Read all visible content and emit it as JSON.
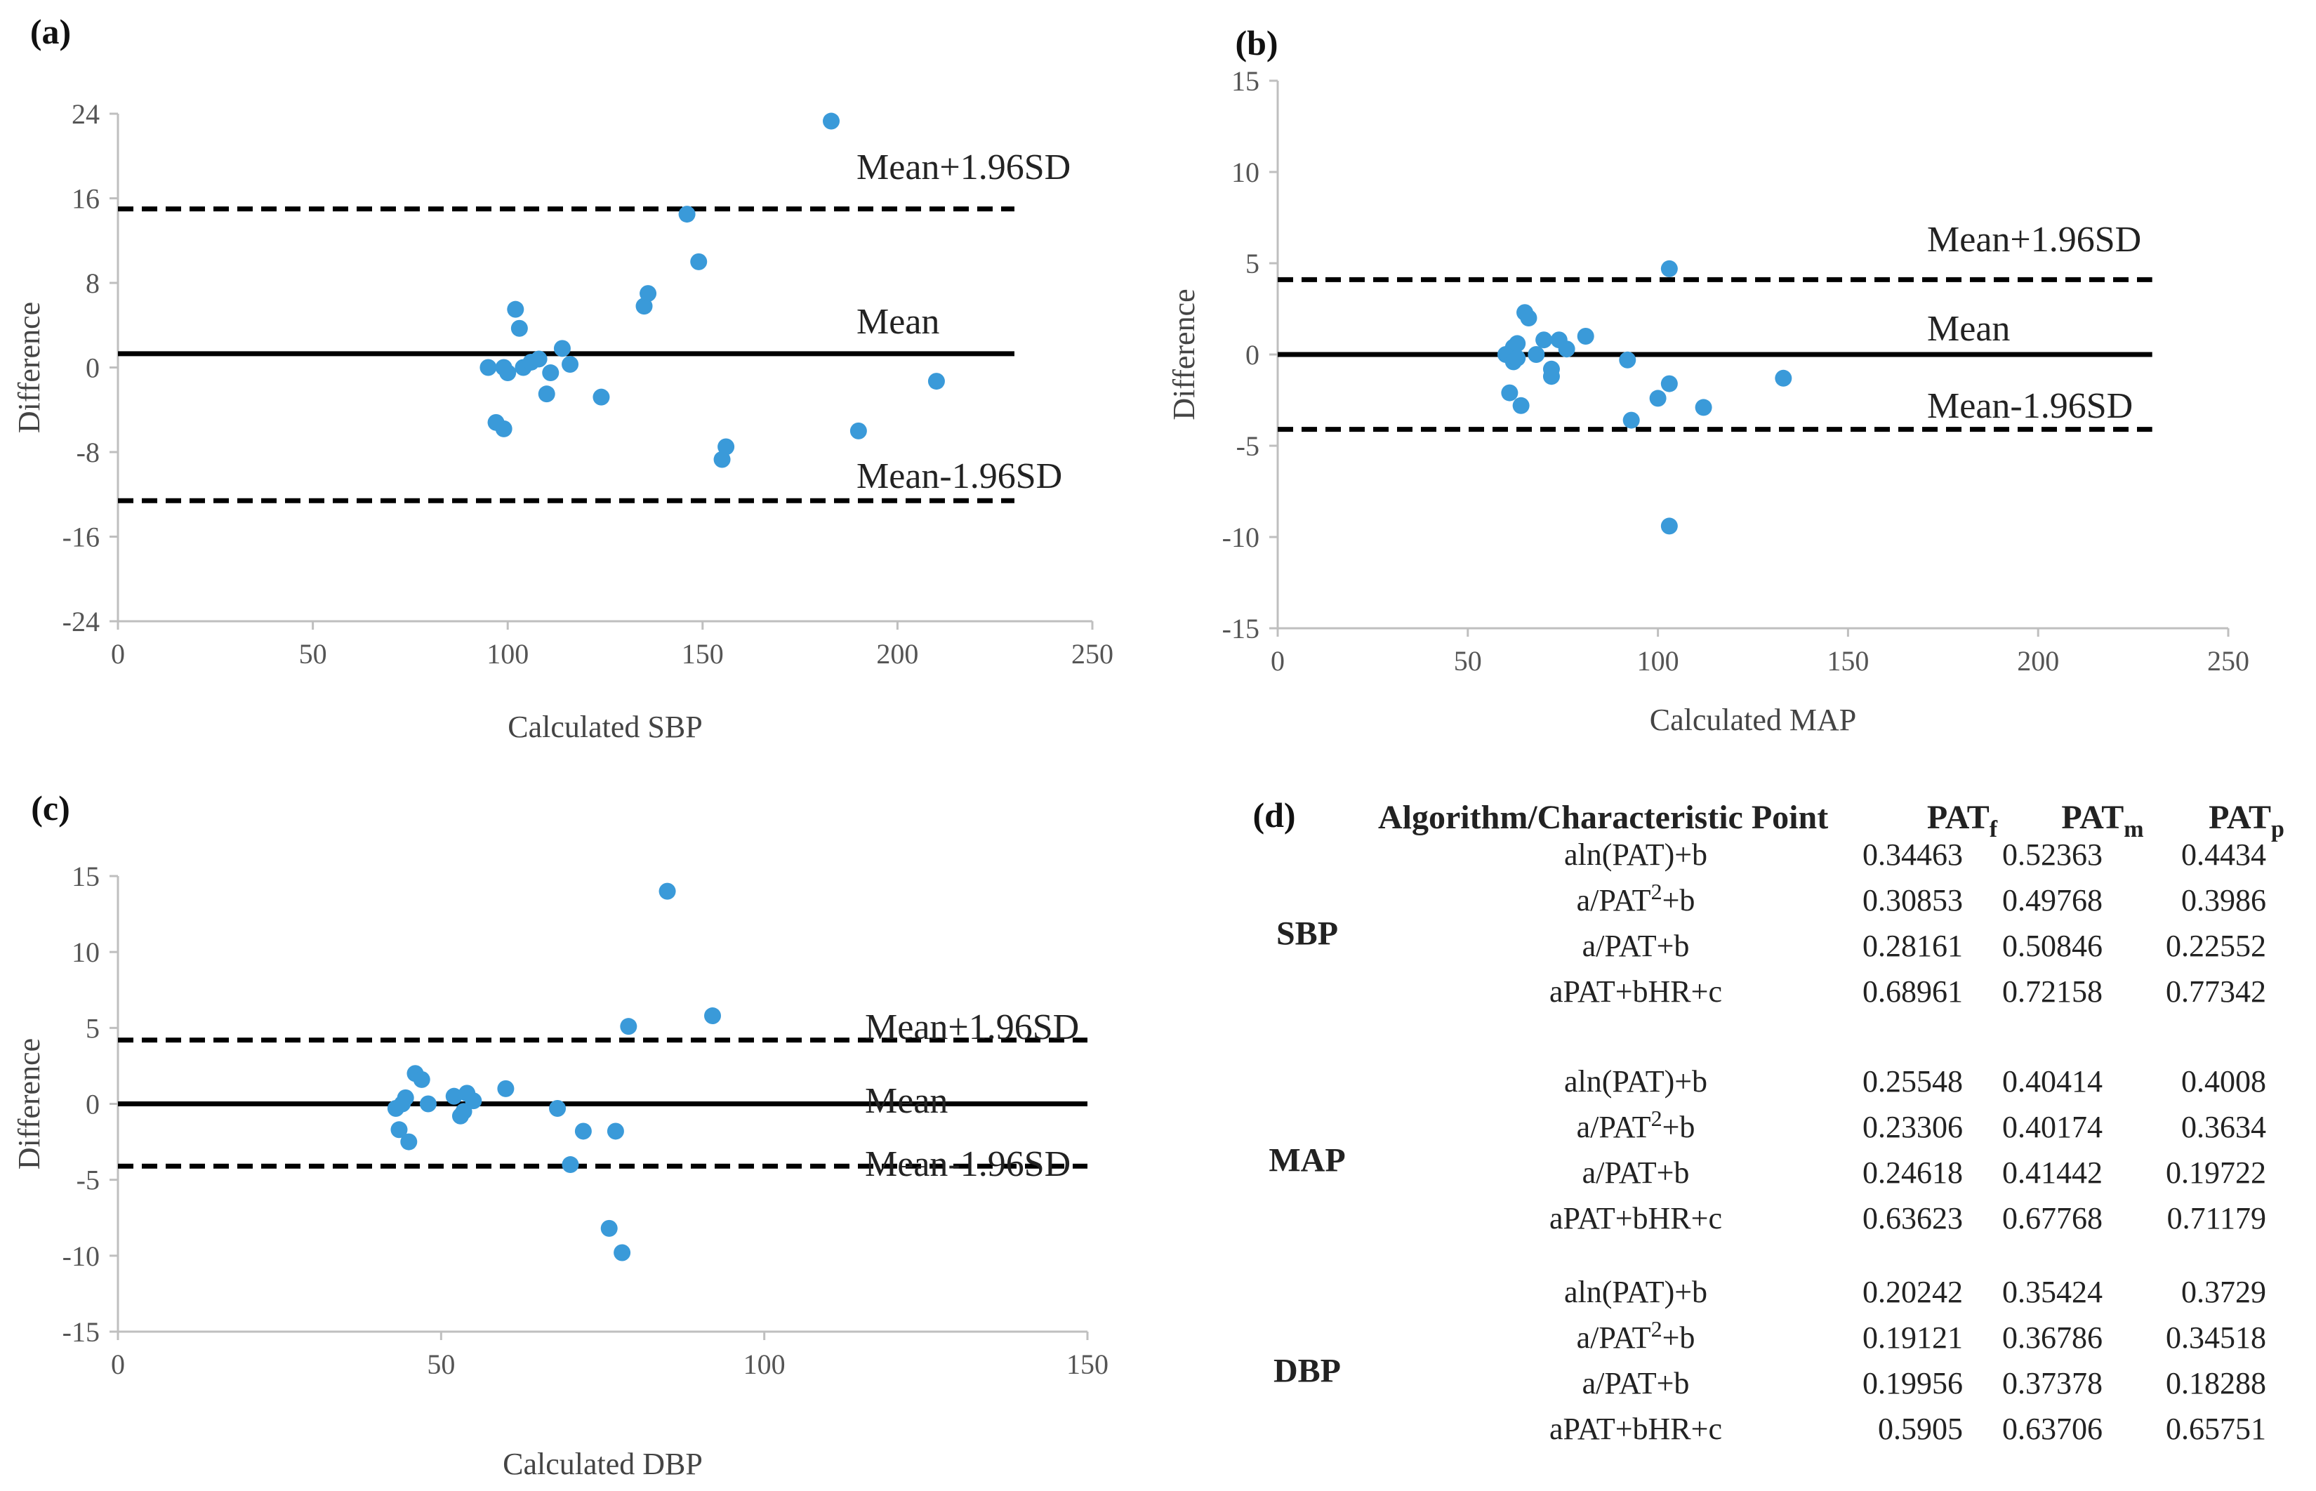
{
  "chart_data": [
    {
      "type": "scatter",
      "panel": "(a)",
      "xlabel": "Calculated SBP",
      "ylabel": "Difference",
      "xlim": [
        0,
        250
      ],
      "ylim": [
        -24,
        24
      ],
      "xticks": [
        "0",
        "50",
        "100",
        "150",
        "200",
        "250"
      ],
      "yticks": [
        "-24",
        "-16",
        "-8",
        "0",
        "8",
        "16",
        "24"
      ],
      "line_x_range": [
        0,
        230
      ],
      "reference_lines": [
        {
          "name": "upper",
          "label": "Mean+1.96SD",
          "value": 15,
          "style": "dashed"
        },
        {
          "name": "mean",
          "label": "Mean",
          "value": 1.3,
          "style": "solid"
        },
        {
          "name": "lower",
          "label": "Mean-1.96SD",
          "value": -12.6,
          "style": "dashed"
        }
      ],
      "points": [
        [
          95,
          0
        ],
        [
          99,
          0
        ],
        [
          100,
          -0.5
        ],
        [
          102,
          5.5
        ],
        [
          103,
          3.7
        ],
        [
          104,
          0
        ],
        [
          106,
          0.5
        ],
        [
          108,
          0.8
        ],
        [
          110,
          -2.5
        ],
        [
          111,
          -0.5
        ],
        [
          114,
          1.8
        ],
        [
          116,
          0.3
        ],
        [
          97,
          -5.2
        ],
        [
          99,
          -5.8
        ],
        [
          124,
          -2.8
        ],
        [
          135,
          5.8
        ],
        [
          136,
          7
        ],
        [
          146,
          14.5
        ],
        [
          149,
          10
        ],
        [
          155,
          -8.7
        ],
        [
          156,
          -7.5
        ],
        [
          183,
          23.3
        ],
        [
          190,
          -6
        ],
        [
          210,
          -1.3
        ]
      ]
    },
    {
      "type": "scatter",
      "panel": "(b)",
      "xlabel": "Calculated MAP",
      "ylabel": "Difference",
      "xlim": [
        0,
        250
      ],
      "ylim": [
        -15,
        15
      ],
      "xticks": [
        "0",
        "50",
        "100",
        "150",
        "200",
        "250"
      ],
      "yticks": [
        "-15",
        "-10",
        "-5",
        "0",
        "5",
        "10",
        "15"
      ],
      "line_x_range": [
        0,
        230
      ],
      "reference_lines": [
        {
          "name": "upper",
          "label": "Mean+1.96SD",
          "value": 4.1,
          "style": "dashed"
        },
        {
          "name": "mean",
          "label": "Mean",
          "value": 0,
          "style": "solid"
        },
        {
          "name": "lower",
          "label": "Mean-1.96SD",
          "value": -4.1,
          "style": "dashed"
        }
      ],
      "points": [
        [
          60,
          0
        ],
        [
          61,
          -2.1
        ],
        [
          62,
          0.4
        ],
        [
          62,
          -0.4
        ],
        [
          63,
          0.6
        ],
        [
          63,
          -0.2
        ],
        [
          64,
          -2.8
        ],
        [
          65,
          2.3
        ],
        [
          66,
          2
        ],
        [
          68,
          0
        ],
        [
          70,
          0.8
        ],
        [
          72,
          -0.8
        ],
        [
          72,
          -1.2
        ],
        [
          74,
          0.8
        ],
        [
          76,
          0.3
        ],
        [
          81,
          1
        ],
        [
          92,
          -0.3
        ],
        [
          93,
          -3.6
        ],
        [
          100,
          -2.4
        ],
        [
          103,
          4.7
        ],
        [
          103,
          -1.6
        ],
        [
          103,
          -9.4
        ],
        [
          112,
          -2.9
        ],
        [
          133,
          -1.3
        ]
      ]
    },
    {
      "type": "scatter",
      "panel": "(c)",
      "xlabel": "Calculated DBP",
      "ylabel": "Difference",
      "xlim": [
        0,
        150
      ],
      "ylim": [
        -15,
        15
      ],
      "xticks": [
        "0",
        "50",
        "100",
        "150"
      ],
      "yticks": [
        "-15",
        "-10",
        "-5",
        "0",
        "5",
        "10",
        "15"
      ],
      "line_x_range": [
        0,
        150
      ],
      "reference_lines": [
        {
          "name": "upper",
          "label": "Mean+1.96SD",
          "value": 4.2,
          "style": "dashed"
        },
        {
          "name": "mean",
          "label": "Mean",
          "value": 0,
          "style": "solid"
        },
        {
          "name": "lower",
          "label": "Mean-1.96SD",
          "value": -4.1,
          "style": "dashed"
        }
      ],
      "points": [
        [
          43,
          -0.3
        ],
        [
          43.5,
          -1.7
        ],
        [
          44,
          0
        ],
        [
          44.5,
          0.4
        ],
        [
          45,
          -2.5
        ],
        [
          46,
          2
        ],
        [
          47,
          1.6
        ],
        [
          48,
          0
        ],
        [
          52,
          0.5
        ],
        [
          53,
          -0.8
        ],
        [
          53.5,
          -0.5
        ],
        [
          54,
          0.7
        ],
        [
          55,
          0.2
        ],
        [
          60,
          1
        ],
        [
          68,
          -0.3
        ],
        [
          70,
          -4
        ],
        [
          72,
          -1.8
        ],
        [
          77,
          -1.8
        ],
        [
          76,
          -8.2
        ],
        [
          78,
          -9.8
        ],
        [
          79,
          5.1
        ],
        [
          85,
          14
        ],
        [
          92,
          5.8
        ]
      ]
    },
    {
      "type": "table",
      "panel": "(d)",
      "header": {
        "col0": "Algorithm/Characteristic Point",
        "cols": [
          {
            "base": "PAT",
            "sub": "f"
          },
          {
            "base": "PAT",
            "sub": "m"
          },
          {
            "base": "PAT",
            "sub": "p"
          }
        ]
      },
      "groups": [
        {
          "name": "SBP",
          "rows": [
            {
              "algo": [
                "aln(PAT)+b"
              ],
              "values": [
                "0.34463",
                "0.52363",
                "0.4434"
              ]
            },
            {
              "algo": [
                "a/PAT",
                "2",
                "+b"
              ],
              "values": [
                "0.30853",
                "0.49768",
                "0.3986"
              ]
            },
            {
              "algo": [
                "a/PAT+b"
              ],
              "values": [
                "0.28161",
                "0.50846",
                "0.22552"
              ]
            },
            {
              "algo": [
                "aPAT+bHR+c"
              ],
              "values": [
                "0.68961",
                "0.72158",
                "0.77342"
              ]
            }
          ]
        },
        {
          "name": "MAP",
          "rows": [
            {
              "algo": [
                "aln(PAT)+b"
              ],
              "values": [
                "0.25548",
                "0.40414",
                "0.4008"
              ]
            },
            {
              "algo": [
                "a/PAT",
                "2",
                "+b"
              ],
              "values": [
                "0.23306",
                "0.40174",
                "0.3634"
              ]
            },
            {
              "algo": [
                "a/PAT+b"
              ],
              "values": [
                "0.24618",
                "0.41442",
                "0.19722"
              ]
            },
            {
              "algo": [
                "aPAT+bHR+c"
              ],
              "values": [
                "0.63623",
                "0.67768",
                "0.71179"
              ]
            }
          ]
        },
        {
          "name": "DBP",
          "rows": [
            {
              "algo": [
                "aln(PAT)+b"
              ],
              "values": [
                "0.20242",
                "0.35424",
                "0.3729"
              ]
            },
            {
              "algo": [
                "a/PAT",
                "2",
                "+b"
              ],
              "values": [
                "0.19121",
                "0.36786",
                "0.34518"
              ]
            },
            {
              "algo": [
                "a/PAT+b"
              ],
              "values": [
                "0.19956",
                "0.37378",
                "0.18288"
              ]
            },
            {
              "algo": [
                "aPAT+bHR+c"
              ],
              "values": [
                "0.5905",
                "0.63706",
                "0.65751"
              ]
            }
          ]
        }
      ]
    }
  ],
  "colors": {
    "point": "#3a9ad9",
    "line": "#000000",
    "axis": "#bfbfbf",
    "text": "#222222"
  }
}
